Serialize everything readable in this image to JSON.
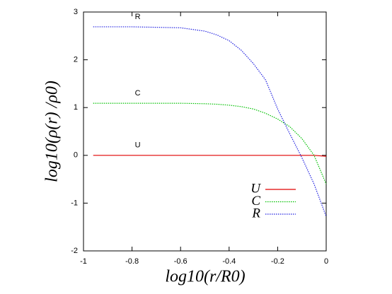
{
  "chart_data": {
    "type": "line",
    "xlabel": "log10(r/R0)",
    "ylabel": "log10(ρ(r) /ρ0)",
    "x": [
      -0.96,
      -0.8,
      -0.6,
      -0.5,
      -0.45,
      -0.4,
      -0.35,
      -0.3,
      -0.25,
      -0.2,
      -0.15,
      -0.1,
      -0.05,
      0
    ],
    "series": [
      {
        "name": "U",
        "color": "#e00000",
        "values": [
          0,
          0,
          0,
          0,
          0,
          0,
          0,
          0,
          0,
          0,
          0,
          0,
          0,
          -0.02
        ]
      },
      {
        "name": "C",
        "color": "#00c000",
        "values": [
          1.09,
          1.09,
          1.09,
          1.08,
          1.07,
          1.05,
          1.02,
          0.97,
          0.88,
          0.76,
          0.6,
          0.35,
          0.0,
          -0.6
        ]
      },
      {
        "name": "R",
        "color": "#2020e0",
        "values": [
          2.69,
          2.69,
          2.67,
          2.6,
          2.52,
          2.4,
          2.2,
          1.92,
          1.58,
          0.97,
          0.45,
          -0.05,
          -0.6,
          -1.28
        ]
      }
    ],
    "xlim": [
      -1,
      0
    ],
    "ylim": [
      -2,
      3
    ],
    "xticks": [
      -1,
      -0.8,
      -0.6,
      -0.4,
      -0.2,
      0
    ],
    "yticks": [
      -2,
      -1,
      0,
      1,
      2,
      3
    ],
    "grid": false
  }
}
